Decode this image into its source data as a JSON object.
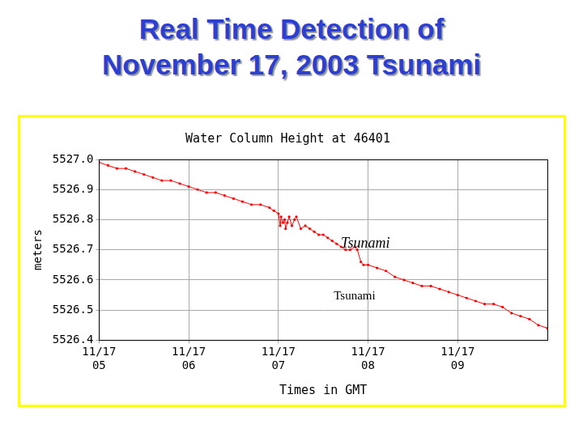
{
  "slide": {
    "title_lines": [
      "Real Time Detection of",
      "November 17, 2003 Tsunami"
    ]
  },
  "chart_data": {
    "type": "line",
    "title": "Water Column Height at 46401",
    "x_label": "Times in GMT",
    "y_label": "meters",
    "x": [
      5.0,
      5.1,
      5.2,
      5.3,
      5.4,
      5.5,
      5.6,
      5.7,
      5.8,
      5.9,
      6.0,
      6.1,
      6.2,
      6.3,
      6.4,
      6.5,
      6.6,
      6.7,
      6.8,
      6.9,
      6.95,
      7.0,
      7.02,
      7.03,
      7.05,
      7.07,
      7.08,
      7.1,
      7.12,
      7.15,
      7.18,
      7.2,
      7.25,
      7.3,
      7.35,
      7.4,
      7.45,
      7.5,
      7.55,
      7.6,
      7.65,
      7.7,
      7.75,
      7.8,
      7.85,
      7.88,
      7.92,
      7.95,
      8.0,
      8.1,
      8.2,
      8.3,
      8.4,
      8.5,
      8.6,
      8.7,
      8.8,
      8.9,
      9.0,
      9.1,
      9.2,
      9.3,
      9.4,
      9.5,
      9.6,
      9.7,
      9.8,
      9.9,
      10.0
    ],
    "series": [
      {
        "name": "Water Column Height",
        "color": "#ff0000",
        "marker": "circle",
        "line_style": "solid",
        "values": [
          5526.99,
          5526.98,
          5526.97,
          5526.97,
          5526.96,
          5526.95,
          5526.94,
          5526.93,
          5526.93,
          5526.92,
          5526.91,
          5526.9,
          5526.89,
          5526.89,
          5526.88,
          5526.87,
          5526.86,
          5526.85,
          5526.85,
          5526.84,
          5526.83,
          5526.82,
          5526.78,
          5526.81,
          5526.79,
          5526.8,
          5526.77,
          5526.79,
          5526.81,
          5526.78,
          5526.8,
          5526.81,
          5526.77,
          5526.78,
          5526.77,
          5526.76,
          5526.75,
          5526.75,
          5526.74,
          5526.73,
          5526.72,
          5526.71,
          5526.7,
          5526.7,
          5526.71,
          5526.7,
          5526.66,
          5526.65,
          5526.65,
          5526.64,
          5526.63,
          5526.61,
          5526.6,
          5526.59,
          5526.58,
          5526.58,
          5526.57,
          5526.56,
          5526.55,
          5526.54,
          5526.53,
          5526.52,
          5526.52,
          5526.51,
          5526.49,
          5526.48,
          5526.47,
          5526.45,
          5526.44
        ]
      }
    ],
    "xlim": [
      5,
      10
    ],
    "xticks": [
      {
        "value": 5,
        "label": "11/17\n05"
      },
      {
        "value": 6,
        "label": "11/17\n06"
      },
      {
        "value": 7,
        "label": "11/17\n07"
      },
      {
        "value": 8,
        "label": "11/17\n08"
      },
      {
        "value": 9,
        "label": "11/17\n09"
      }
    ],
    "ylim": [
      5526.4,
      5527.0
    ],
    "yticks": [
      {
        "value": 5526.4,
        "label": "5526.4"
      },
      {
        "value": 5526.5,
        "label": "5526.5"
      },
      {
        "value": 5526.6,
        "label": "5526.6"
      },
      {
        "value": 5526.7,
        "label": "5526.7"
      },
      {
        "value": 5526.8,
        "label": "5526.8"
      },
      {
        "value": 5526.9,
        "label": "5526.9"
      },
      {
        "value": 5527.0,
        "label": "5527.0"
      }
    ],
    "grid": true,
    "annotations": [
      {
        "text": "Tsunami",
        "x": 7.97,
        "y": 5526.72
      },
      {
        "text": "Tsunami",
        "x": 7.85,
        "y": 5526.545
      }
    ]
  }
}
